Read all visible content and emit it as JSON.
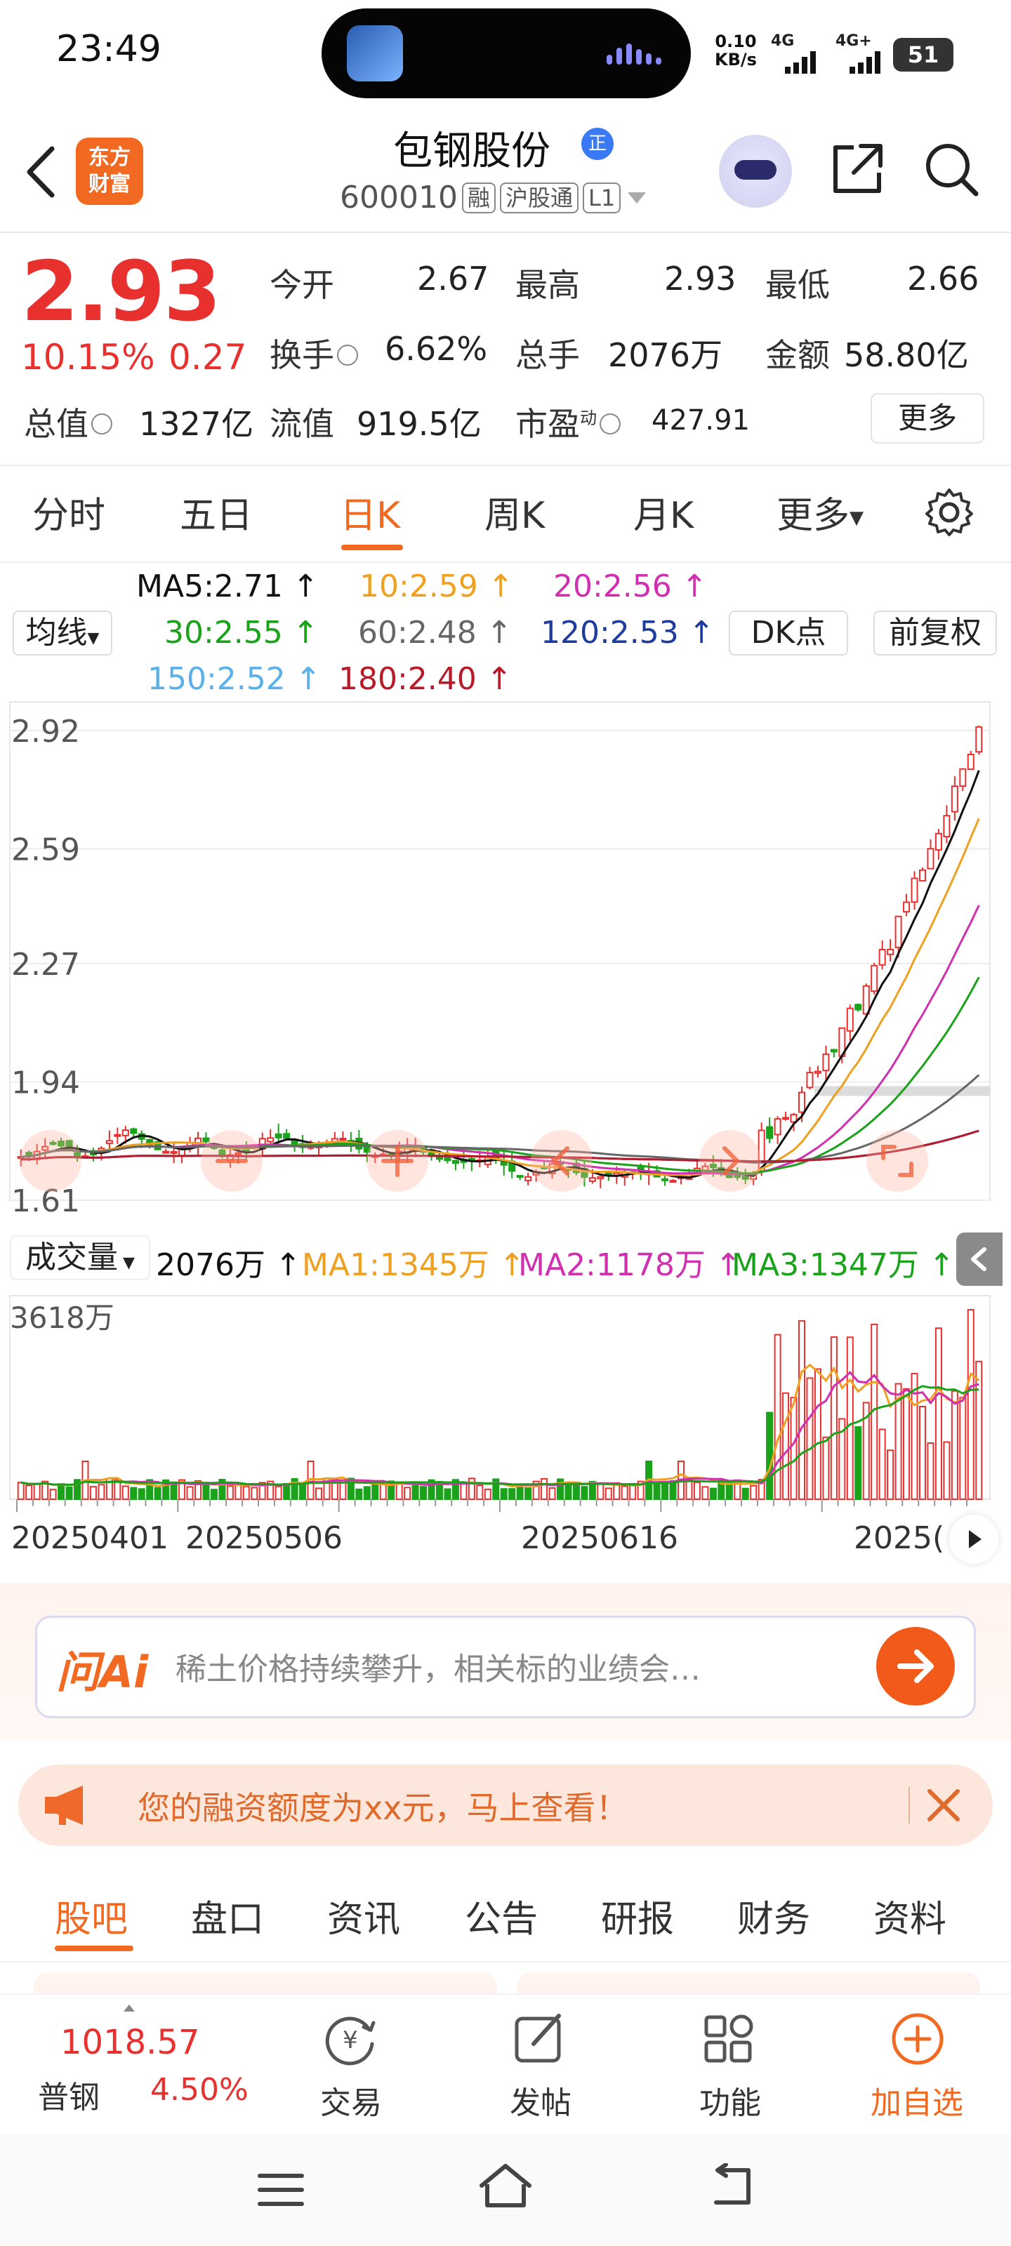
{
  "status_bar": {
    "time": "23:49",
    "net_speed_value": "0.10",
    "net_speed_unit": "KB/s",
    "signal1": "4G",
    "signal2": "4G+",
    "battery": "51"
  },
  "header": {
    "logo_text_1": "东方",
    "logo_text_2": "财富",
    "stock_name": "包钢股份",
    "verified": "正",
    "stock_code": "600010",
    "tags": [
      "融",
      "沪股通",
      "L1"
    ]
  },
  "quote": {
    "price": "2.93",
    "change_pct": "10.15%",
    "change": "0.27",
    "open_label": "今开",
    "open": "2.67",
    "high_label": "最高",
    "high": "2.93",
    "low_label": "最低",
    "low": "2.66",
    "turnover_label": "换手",
    "turnover": "6.62%",
    "volume_label": "总手",
    "volume": "2076万",
    "amount_label": "金额",
    "amount": "58.80亿",
    "mktcap_label": "总值",
    "mktcap": "1327亿",
    "float_label": "流值",
    "float": "919.5亿",
    "pe_label": "市盈",
    "pe_sup": "动",
    "pe": "427.91",
    "more": "更多"
  },
  "tabs": [
    "分时",
    "五日",
    "日K",
    "周K",
    "月K",
    "更多"
  ],
  "ma_legend": {
    "ma5": "MA5:2.71 ↑",
    "ma10": "10:2.59 ↑",
    "ma20": "20:2.56 ↑",
    "ma30": "30:2.55 ↑",
    "ma60": "60:2.48 ↑",
    "ma120": "120:2.53 ↑",
    "ma150": "150:2.52 ↑",
    "ma180": "180:2.40 ↑",
    "type_select": "均线",
    "dk_button": "DK点",
    "adjust_button": "前复权"
  },
  "colors": {
    "up": "#e8312f",
    "down": "#1aa31a",
    "accent": "#f26a21",
    "ma5": "#111111",
    "ma10": "#f0a020",
    "ma20": "#d030b0",
    "ma30": "#1aa31a",
    "ma60": "#666666",
    "ma120": "#1d3c9e",
    "ma150": "#5ab0e8",
    "ma180": "#b81a2a"
  },
  "chart_data": {
    "type": "candlestick",
    "y_ticks": [
      "2.92",
      "2.59",
      "2.27",
      "1.94",
      "1.61"
    ],
    "ylim": [
      1.61,
      3.0
    ],
    "x_ticks": [
      "20250401",
      "20250506",
      "20250616",
      "2025("
    ],
    "volume": {
      "label": "成交量",
      "current": "2076万 ↑",
      "ma1": "MA1:1345万 ↑",
      "ma2": "MA2:1178万 ↑",
      "ma3": "MA3:1347万 ↑",
      "max_label": "3618万"
    }
  },
  "ai": {
    "logo": "问Ai",
    "prompt": "稀土价格持续攀升，相关标的业绩会…"
  },
  "promo": {
    "text": "您的融资额度为xx元，马上查看！"
  },
  "bottom_tabs": [
    "股吧",
    "盘口",
    "资讯",
    "公告",
    "研报",
    "财务",
    "资料"
  ],
  "bottom_nav": {
    "index_value": "1018.57",
    "index_name": "普钢",
    "index_pct": "4.50%",
    "trade": "交易",
    "post": "发帖",
    "functions": "功能",
    "add_watch": "加自选"
  }
}
